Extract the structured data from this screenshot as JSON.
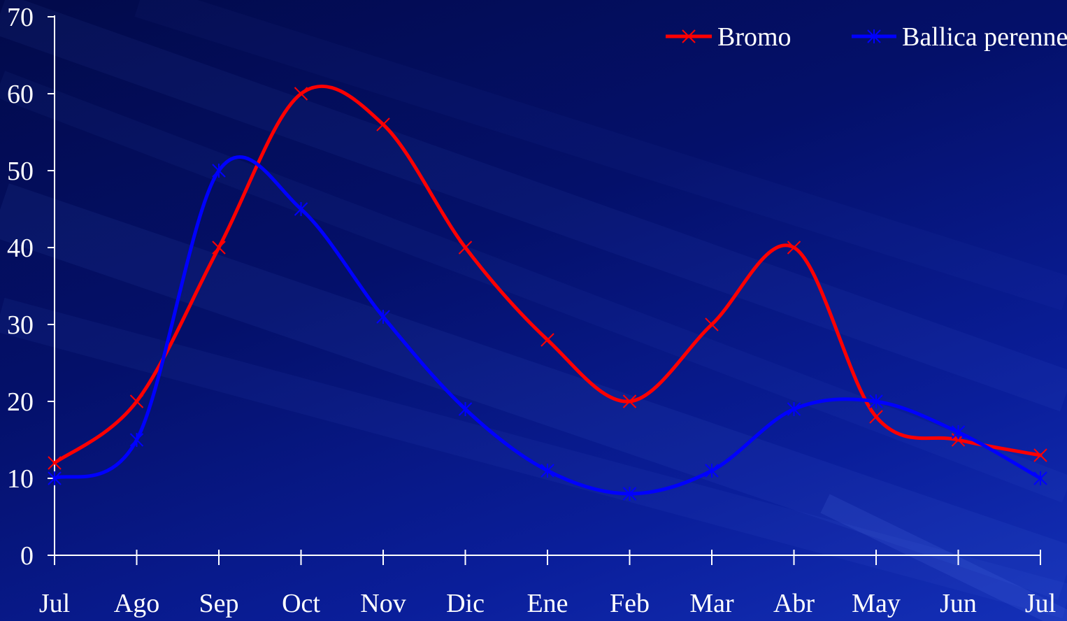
{
  "chart_data": {
    "type": "line",
    "categories": [
      "Jul",
      "Ago",
      "Sep",
      "Oct",
      "Nov",
      "Dic",
      "Ene",
      "Feb",
      "Mar",
      "Abr",
      "May",
      "Jun",
      "Jul"
    ],
    "series": [
      {
        "name": "Bromo",
        "color": "#ff0000",
        "marker": "x",
        "values": [
          12,
          20,
          40,
          60,
          56,
          40,
          28,
          20,
          30,
          40,
          18,
          15,
          13
        ]
      },
      {
        "name": "Ballica perenne",
        "color": "#0000ff",
        "marker": "star",
        "values": [
          10,
          15,
          50,
          45,
          31,
          19,
          11,
          8,
          11,
          19,
          20,
          16,
          10
        ]
      }
    ],
    "ylim": [
      0,
      70
    ],
    "yticks": [
      0,
      10,
      20,
      30,
      40,
      50,
      60,
      70
    ],
    "grid": false,
    "legend_position": "top-right",
    "axis_color": "#ffffff",
    "background_color": "#04106a"
  }
}
